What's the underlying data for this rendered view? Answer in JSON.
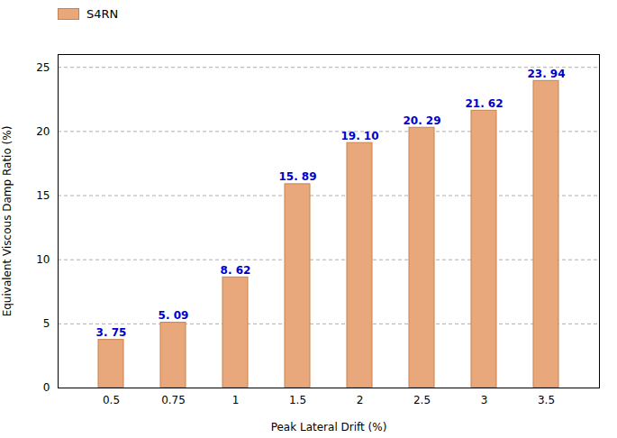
{
  "chart_data": {
    "type": "bar",
    "categories": [
      "0.5",
      "0.75",
      "1",
      "1.5",
      "2",
      "2.5",
      "3",
      "3.5"
    ],
    "series": [
      {
        "name": "S4RN",
        "color": "#E8A87C",
        "values": [
          3.75,
          5.09,
          8.62,
          15.89,
          19.1,
          20.29,
          21.62,
          23.94
        ],
        "value_labels": [
          "3. 75",
          "5. 09",
          "8. 62",
          "15. 89",
          "19. 10",
          "20. 29",
          "21. 62",
          "23. 94"
        ]
      }
    ],
    "xlabel": "Peak Lateral Drift (%)",
    "ylabel": "Equivalent Viscous Damp Ratio (%)",
    "ylim": [
      0,
      26
    ],
    "yticks": [
      0,
      5,
      10,
      15,
      20,
      25
    ],
    "grid": true,
    "legend": "upper left",
    "data_labels": true
  }
}
